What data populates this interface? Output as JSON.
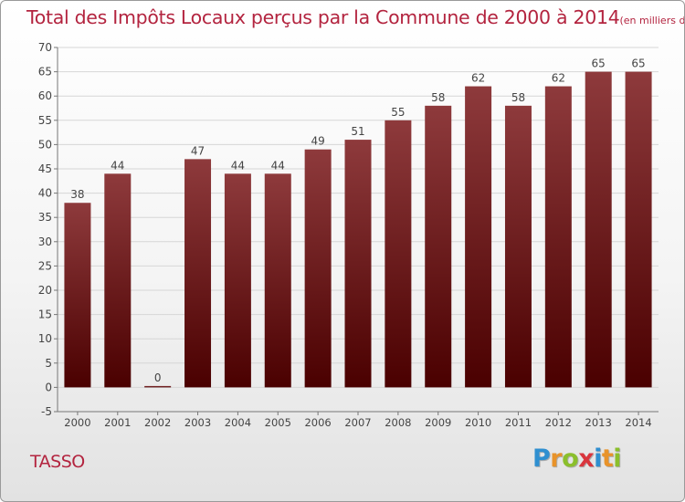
{
  "header": {
    "title": "Total des Impôts Locaux perçus par la Commune de 2000 à 2014",
    "unit": "(en milliers d'€)"
  },
  "footer": {
    "commune": "TASSO",
    "logo_letters": [
      "P",
      "r",
      "o",
      "x",
      "i",
      "t",
      "i"
    ],
    "logo_colors": [
      "#2f8fd0",
      "#e8932a",
      "#8bbf2c",
      "#d9353d",
      "#2f8fd0",
      "#e8932a",
      "#8bbf2c"
    ]
  },
  "colors": {
    "bar_top": "#8e3a3c",
    "bar_bottom": "#4a0000",
    "title": "#b3243f",
    "grid": "#d6d6d6",
    "axis": "#777777"
  },
  "chart_data": {
    "type": "bar",
    "categories": [
      "2000",
      "2001",
      "2002",
      "2003",
      "2004",
      "2005",
      "2006",
      "2007",
      "2008",
      "2009",
      "2010",
      "2011",
      "2012",
      "2013",
      "2014"
    ],
    "values": [
      38,
      44,
      0,
      47,
      44,
      44,
      49,
      51,
      55,
      58,
      62,
      58,
      62,
      65,
      65
    ],
    "ylim": [
      -5,
      70
    ],
    "yticks": [
      -5,
      0,
      5,
      10,
      15,
      20,
      25,
      30,
      35,
      40,
      45,
      50,
      55,
      60,
      65,
      70
    ],
    "grid": true,
    "data_labels": true
  }
}
